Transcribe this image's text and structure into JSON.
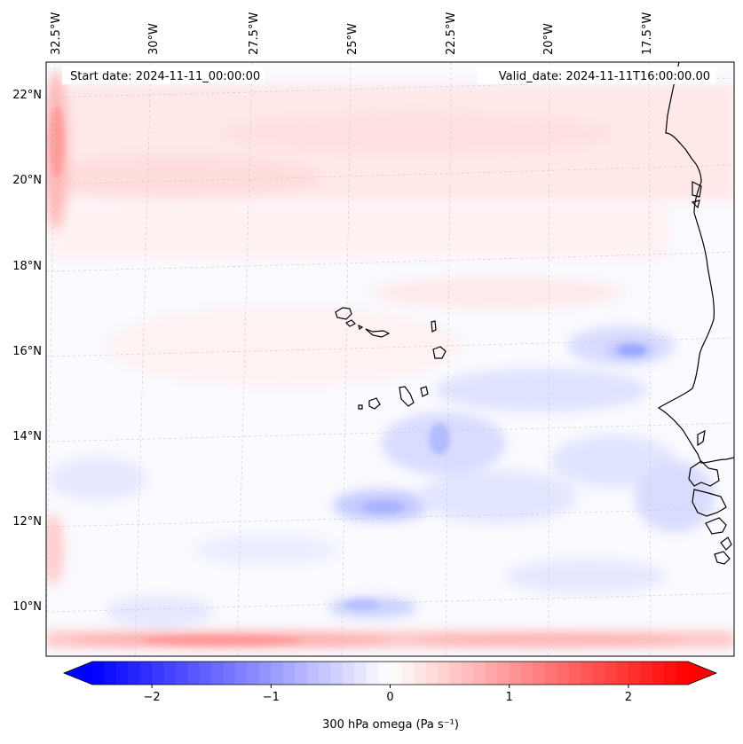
{
  "map": {
    "start_date_label": "Start date: 2024-11-11_00:00:00",
    "valid_date_label": "Valid_date: 2024-11-11T16:00:00.00",
    "lon_labels": [
      "32.5°W",
      "30°W",
      "27.5°W",
      "25°W",
      "22.5°W",
      "20°W",
      "17.5°W"
    ],
    "lat_labels": [
      "22°N",
      "20°N",
      "18°N",
      "16°N",
      "14°N",
      "12°N",
      "10°N"
    ],
    "field": "omega",
    "level": "300 hPa"
  },
  "colorbar": {
    "label": "300 hPa omega (Pa s⁻¹)",
    "ticks": [
      -2,
      -1,
      0,
      1,
      2
    ],
    "tick_labels": [
      "−2",
      "−1",
      "0",
      "1",
      "2"
    ],
    "vmin": -2.5,
    "vmax": 2.5,
    "extend": "both",
    "colors": {
      "negative": "#0000ff",
      "zero": "#ffffff",
      "positive": "#ff0000"
    }
  }
}
